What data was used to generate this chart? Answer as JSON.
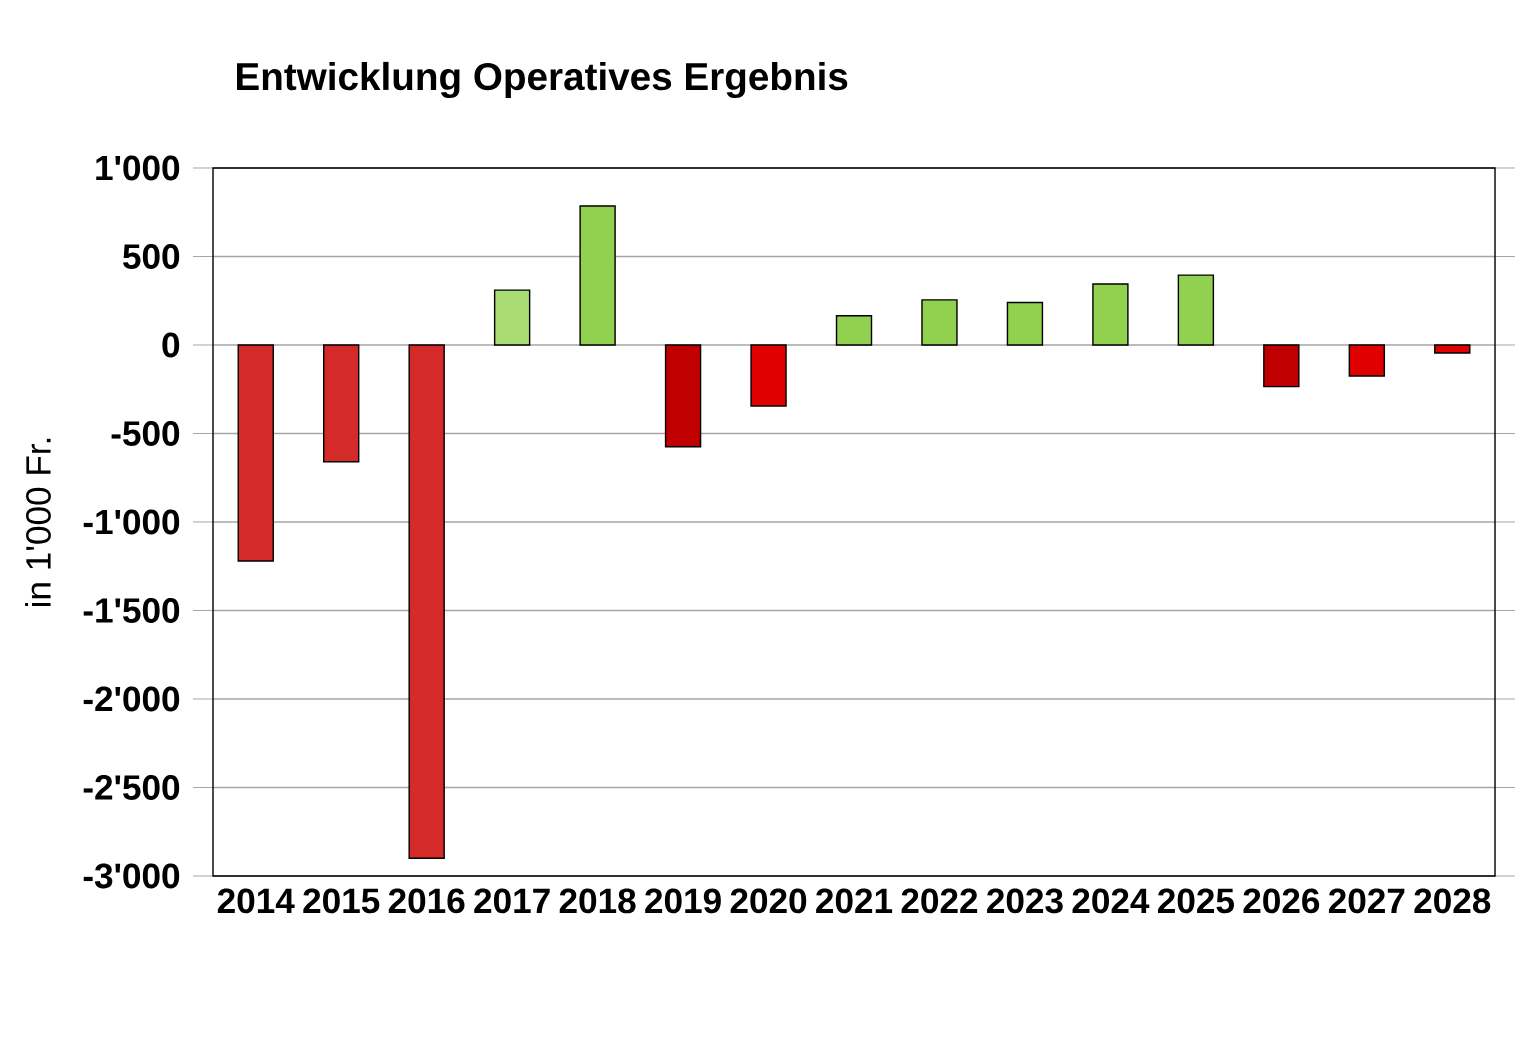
{
  "chart_data": {
    "type": "bar",
    "title": "Entwicklung Operatives Ergebnis",
    "ylabel": "in 1'000 Fr.",
    "categories": [
      "2014",
      "2015",
      "2016",
      "2017",
      "2018",
      "2019",
      "2020",
      "2021",
      "2022",
      "2023",
      "2024",
      "2025",
      "2026",
      "2027",
      "2028"
    ],
    "values": [
      -1220,
      -660,
      -2900,
      310,
      785,
      -575,
      -345,
      165,
      255,
      240,
      345,
      395,
      -235,
      -175,
      -45
    ],
    "colors": [
      "#d42a2a",
      "#d42a2a",
      "#d42a2a",
      "#a9dc72",
      "#92d050",
      "#c00000",
      "#e00000",
      "#92d050",
      "#92d050",
      "#92d050",
      "#92d050",
      "#92d050",
      "#c00000",
      "#e00000",
      "#e00000"
    ],
    "ylim": [
      -3000,
      1000
    ],
    "yticks": [
      {
        "value": -3000,
        "label": "-3'000"
      },
      {
        "value": -2500,
        "label": "-2'500"
      },
      {
        "value": -2000,
        "label": "-2'000"
      },
      {
        "value": -1500,
        "label": "-1'500"
      },
      {
        "value": -1000,
        "label": "-1'000"
      },
      -500,
      0,
      500,
      {
        "value": 1000,
        "label": "1'000"
      }
    ],
    "grid": "y"
  }
}
